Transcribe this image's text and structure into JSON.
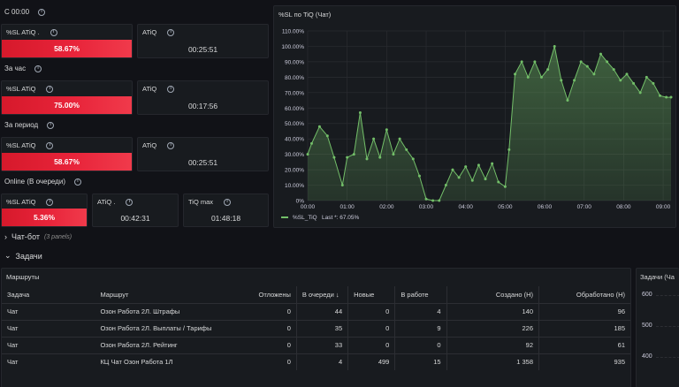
{
  "rows": {
    "c0000": "С 00:00",
    "hour": "За час",
    "period": "За период",
    "online": "Online (В очереди)"
  },
  "stats": {
    "sl_c0000": {
      "title": "%SL ATiQ .",
      "value": "58.67%"
    },
    "atiq_c0000": {
      "title": "ATiQ",
      "value": "00:25:51"
    },
    "sl_hour": {
      "title": "%SL ATiQ",
      "value": "75.00%"
    },
    "atiq_hour": {
      "title": "ATiQ",
      "value": "00:17:56"
    },
    "sl_period": {
      "title": "%SL ATiQ",
      "value": "58.67%"
    },
    "atiq_period": {
      "title": "ATiQ",
      "value": "00:25:51"
    },
    "sl_online": {
      "title": "%SL ATiQ",
      "value": "5.36%"
    },
    "atiq_online": {
      "title": "ATiQ .",
      "value": "00:42:31"
    },
    "tiqmax_online": {
      "title": "TiQ max",
      "value": "01:48:18"
    }
  },
  "colors": {
    "red": "#e8243a",
    "line": "#73bf69",
    "bg": "#111217",
    "panel": "#181b1f"
  },
  "chart_panel_title": "%SL по TiQ (Чат)",
  "chart_data": {
    "type": "area",
    "title": "%SL по TiQ (Чат)",
    "yticks": [
      "0%",
      "10.00%",
      "20.00%",
      "30.00%",
      "40.00%",
      "50.00%",
      "60.00%",
      "70.00%",
      "80.00%",
      "90.00%",
      "100.00%",
      "110.00%"
    ],
    "ylim": [
      0,
      110
    ],
    "xticks": [
      "00:00",
      "01:00",
      "02:00",
      "03:00",
      "04:00",
      "05:00",
      "06:00",
      "07:00",
      "08:00",
      "09:00"
    ],
    "xlim_hours": [
      0,
      9.2
    ],
    "series": [
      {
        "name": "%SL_TiQ",
        "legend_suffix": "Last *: 67.05%",
        "x_hours": [
          0,
          0.1,
          0.3,
          0.5,
          0.67,
          0.88,
          1.0,
          1.17,
          1.33,
          1.5,
          1.67,
          1.83,
          2.0,
          2.17,
          2.33,
          2.5,
          2.67,
          2.83,
          3.0,
          3.17,
          3.33,
          3.5,
          3.67,
          3.83,
          4.0,
          4.17,
          4.33,
          4.5,
          4.67,
          4.83,
          5.0,
          5.1,
          5.25,
          5.42,
          5.58,
          5.75,
          5.92,
          6.08,
          6.25,
          6.42,
          6.58,
          6.75,
          6.92,
          7.08,
          7.25,
          7.42,
          7.58,
          7.75,
          7.92,
          8.08,
          8.25,
          8.42,
          8.58,
          8.75,
          8.92,
          9.08,
          9.2
        ],
        "values": [
          30,
          37,
          48,
          42,
          28,
          10,
          28,
          30,
          57,
          27,
          40,
          28,
          46,
          30,
          40,
          33,
          27,
          16,
          1,
          0,
          0,
          10,
          20,
          15,
          22,
          13,
          23,
          14,
          24,
          12,
          9,
          33,
          82,
          90,
          80,
          90,
          80,
          85,
          100,
          78,
          65,
          78,
          90,
          87,
          82,
          95,
          90,
          85,
          78,
          82,
          76,
          70,
          80,
          76,
          68,
          67,
          67
        ]
      }
    ]
  },
  "chat_bot": {
    "label": "Чат-бот",
    "sub": "(3 panels)"
  },
  "tasks_row": {
    "label": "Задачи"
  },
  "routes_panel": {
    "title": "Маршруты",
    "columns": [
      "Задача",
      "Маршрут",
      "Отложены",
      "В очереди ↓",
      "Новые",
      "В работе",
      "Создано (Н)",
      "Обработано (Н)"
    ],
    "rows": [
      [
        "Чат",
        "Озон Работа 2Л. Штрафы",
        "0",
        "44",
        "0",
        "4",
        "140",
        "96"
      ],
      [
        "Чат",
        "Озон Работа 2Л. Выплаты / Тарифы",
        "0",
        "35",
        "0",
        "9",
        "226",
        "185"
      ],
      [
        "Чат",
        "Озон Работа 2Л. Рейтинг",
        "0",
        "33",
        "0",
        "0",
        "92",
        "61"
      ],
      [
        "Чат",
        "КЦ Чат Озон Работа 1Л",
        "0",
        "4",
        "499",
        "15",
        "1 358",
        "935"
      ]
    ]
  },
  "tasks_chart_panel": {
    "title": "Задачи (Ча",
    "yticks": [
      "600",
      "500",
      "400"
    ]
  }
}
